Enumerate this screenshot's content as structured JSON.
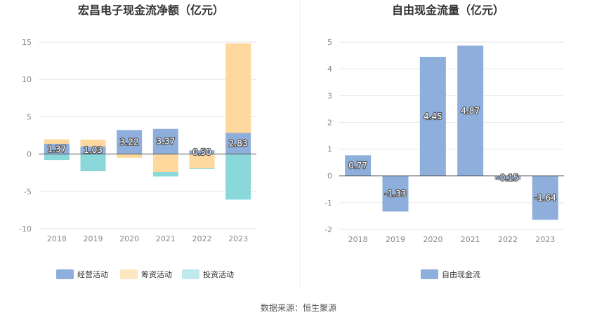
{
  "source": "数据来源：恒生聚源",
  "colors": {
    "operating": "#8eaedb",
    "financing": "#ffd89e",
    "investing": "#8bd8da",
    "free_cash_flow": "#8eaedb",
    "legend_financing": "#fde6c2",
    "legend_investing": "#bfe9ea"
  },
  "chart_data": [
    {
      "type": "bar",
      "stacked": true,
      "title": "宏昌电子现金流净额（亿元）",
      "categories": [
        "2018",
        "2019",
        "2020",
        "2021",
        "2022",
        "2023"
      ],
      "ylim": [
        -10,
        15
      ],
      "yticks": [
        "-10",
        "-5",
        "0",
        "5",
        "10",
        "15"
      ],
      "grid": true,
      "legend_position": "bottom",
      "series": [
        {
          "name": "经营活动",
          "values": [
            1.37,
            1.03,
            3.22,
            3.37,
            0.5,
            2.83
          ],
          "labels": [
            "1.37",
            "1.03",
            "3.22",
            "3.37",
            "0.50",
            "2.83"
          ]
        },
        {
          "name": "筹资活动",
          "values": [
            0.6,
            0.9,
            -0.5,
            -2.4,
            -1.9,
            12.0
          ]
        },
        {
          "name": "投资活动",
          "values": [
            -0.8,
            -2.3,
            0.0,
            -0.6,
            -0.1,
            -6.1
          ]
        }
      ]
    },
    {
      "type": "bar",
      "title": "自由现金流量（亿元）",
      "categories": [
        "2018",
        "2019",
        "2020",
        "2021",
        "2022",
        "2023"
      ],
      "ylim": [
        -2,
        5
      ],
      "yticks": [
        "-2",
        "-1",
        "0",
        "1",
        "2",
        "3",
        "4",
        "5"
      ],
      "grid": true,
      "legend_position": "bottom",
      "series": [
        {
          "name": "自由现金流",
          "values": [
            0.77,
            -1.33,
            4.45,
            4.87,
            -0.15,
            -1.64
          ],
          "labels": [
            "0.77",
            "-1.33",
            "4.45",
            "4.87",
            "-0.15",
            "-1.64"
          ]
        }
      ]
    }
  ]
}
